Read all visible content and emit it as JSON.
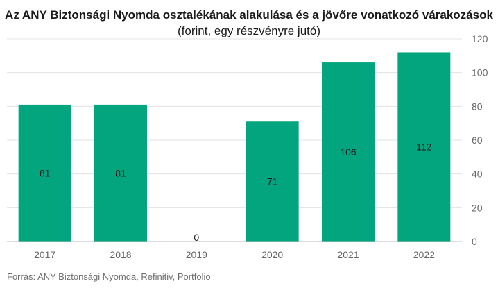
{
  "header": {
    "title_bold": "Az ANY Biztonsági Nyomda osztalékának alakulása és a jövőre vonatkozó várakozások",
    "title_normal": "(forint, egy részvényre jutó)"
  },
  "footer": {
    "source": "Forrás: ANY Biztonsági Nyomda, Refinitiv, Portfolio"
  },
  "colors": {
    "bar": "#03a57f",
    "grid": "#e3e3e3",
    "axis": "#bdbdbd"
  },
  "chart_data": {
    "type": "bar",
    "title": "Az ANY Biztonsági Nyomda osztalékának alakulása és a jövőre vonatkozó várakozások (forint, egy részvényre jutó)",
    "categories": [
      "2017",
      "2018",
      "2019",
      "2020",
      "2021",
      "2022"
    ],
    "values": [
      81,
      81,
      0,
      71,
      106,
      112
    ],
    "data_labels": [
      "81",
      "81",
      "0",
      "71",
      "106",
      "112"
    ],
    "ylim": [
      0,
      120
    ],
    "yticks": [
      0,
      20,
      40,
      60,
      80,
      100,
      120
    ],
    "yaxis_position": "right",
    "grid": true,
    "legend": "none"
  }
}
